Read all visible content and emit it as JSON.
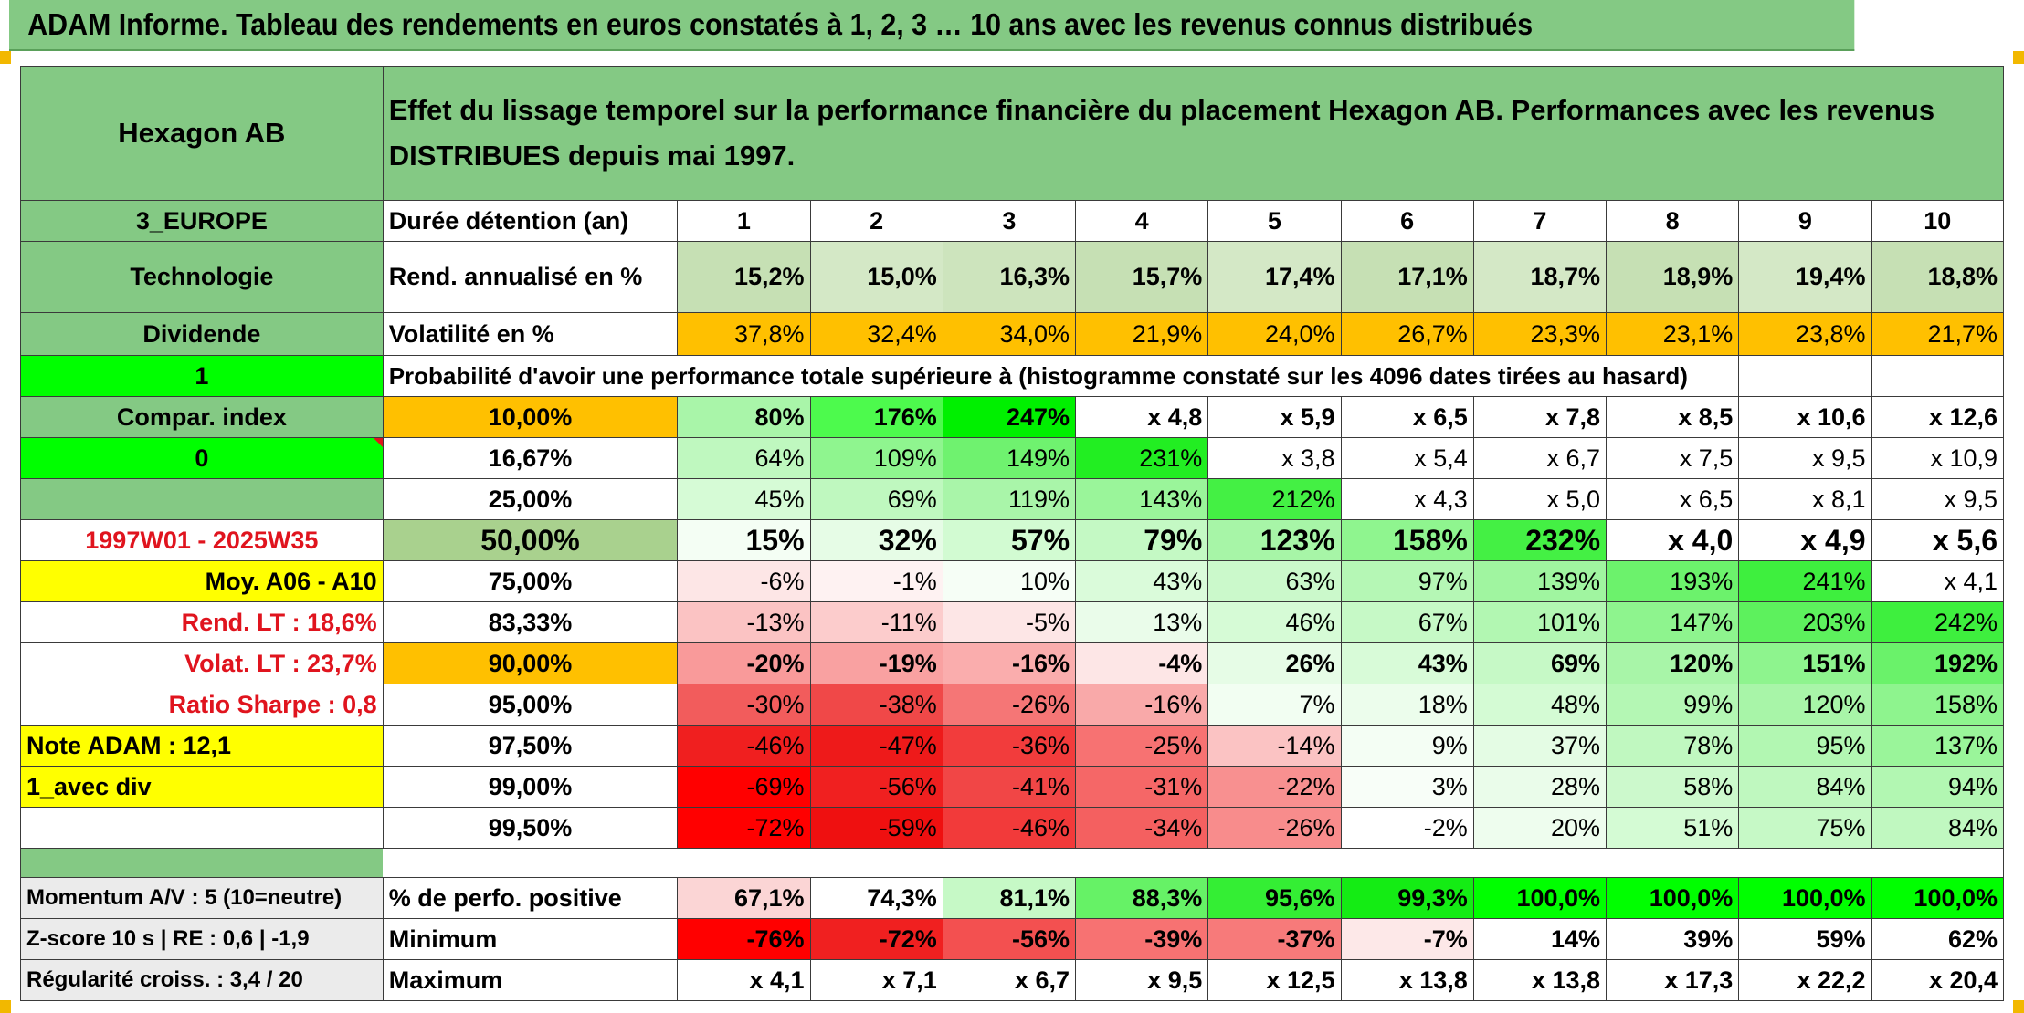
{
  "title": "ADAM Informe. Tableau des rendements en euros constatés à 1, 2, 3 … 10 ans avec les revenus connus distribués",
  "fund": "Hexagon AB",
  "description": "Effet du lissage temporel sur la performance financière du placement Hexagon AB. Performances avec les revenus DISTRIBUES depuis mai 1997.",
  "left_labels": {
    "region": "3_EUROPE",
    "sector": "Technologie",
    "dividend": "Dividende",
    "flag_one": "1",
    "compar_index": "Compar. index",
    "flag_zero": "0",
    "period": "1997W01 - 2025W35",
    "average": "Moy. A06 - A10",
    "rend_lt": "Rend. LT :   18,6%",
    "volat_lt": "Volat. LT :   23,7%",
    "sharpe": "Ratio Sharpe :    0,8",
    "note": "Note ADAM : 12,1",
    "mode": "1_avec div",
    "momentum": "Momentum A/V : 5 (10=neutre)",
    "zscore": "Z-score 10 s | RE : 0,6 | -1,9",
    "regularite": "Régularité croiss. : 3,4 / 20"
  },
  "years_label": "Durée détention (an)",
  "years": [
    "1",
    "2",
    "3",
    "4",
    "5",
    "6",
    "7",
    "8",
    "9",
    "10"
  ],
  "rend_label": "Rend. annualisé en %",
  "rend": [
    "15,2%",
    "15,0%",
    "16,3%",
    "15,7%",
    "17,4%",
    "17,1%",
    "18,7%",
    "18,9%",
    "19,4%",
    "18,8%"
  ],
  "vol_label": "Volatilité en %",
  "vol": [
    "37,8%",
    "32,4%",
    "34,0%",
    "21,9%",
    "24,0%",
    "26,7%",
    "23,3%",
    "23,1%",
    "23,8%",
    "21,7%"
  ],
  "prob_label": "Probabilité d'avoir une performance totale supérieure à (histogramme constaté sur les 4096 dates tirées au hasard)",
  "quantiles": [
    {
      "p": "10,00%",
      "v": [
        "80%",
        "176%",
        "247%",
        "x 4,8",
        "x 5,9",
        "x 6,5",
        "x 7,8",
        "x 8,5",
        "x 10,6",
        "x 12,6"
      ]
    },
    {
      "p": "16,67%",
      "v": [
        "64%",
        "109%",
        "149%",
        "231%",
        "x 3,8",
        "x 5,4",
        "x 6,7",
        "x 7,5",
        "x 9,5",
        "x 10,9"
      ]
    },
    {
      "p": "25,00%",
      "v": [
        "45%",
        "69%",
        "119%",
        "143%",
        "212%",
        "x 4,3",
        "x 5,0",
        "x 6,5",
        "x 8,1",
        "x 9,5"
      ]
    },
    {
      "p": "50,00%",
      "v": [
        "15%",
        "32%",
        "57%",
        "79%",
        "123%",
        "158%",
        "232%",
        "x 4,0",
        "x 4,9",
        "x 5,6"
      ]
    },
    {
      "p": "75,00%",
      "v": [
        "-6%",
        "-1%",
        "10%",
        "43%",
        "63%",
        "97%",
        "139%",
        "193%",
        "241%",
        "x 4,1"
      ]
    },
    {
      "p": "83,33%",
      "v": [
        "-13%",
        "-11%",
        "-5%",
        "13%",
        "46%",
        "67%",
        "101%",
        "147%",
        "203%",
        "242%"
      ]
    },
    {
      "p": "90,00%",
      "v": [
        "-20%",
        "-19%",
        "-16%",
        "-4%",
        "26%",
        "43%",
        "69%",
        "120%",
        "151%",
        "192%"
      ]
    },
    {
      "p": "95,00%",
      "v": [
        "-30%",
        "-38%",
        "-26%",
        "-16%",
        "7%",
        "18%",
        "48%",
        "99%",
        "120%",
        "158%"
      ]
    },
    {
      "p": "97,50%",
      "v": [
        "-46%",
        "-47%",
        "-36%",
        "-25%",
        "-14%",
        "9%",
        "37%",
        "78%",
        "95%",
        "137%"
      ]
    },
    {
      "p": "99,00%",
      "v": [
        "-69%",
        "-56%",
        "-41%",
        "-31%",
        "-22%",
        "3%",
        "28%",
        "58%",
        "84%",
        "94%"
      ]
    },
    {
      "p": "99,50%",
      "v": [
        "-72%",
        "-59%",
        "-46%",
        "-34%",
        "-26%",
        "-2%",
        "20%",
        "51%",
        "75%",
        "84%"
      ]
    }
  ],
  "positive_label": "% de perfo. positive",
  "positive": [
    "67,1%",
    "74,3%",
    "81,1%",
    "88,3%",
    "95,6%",
    "99,3%",
    "100,0%",
    "100,0%",
    "100,0%",
    "100,0%"
  ],
  "min_label": "Minimum",
  "minimum": [
    "-76%",
    "-72%",
    "-56%",
    "-39%",
    "-37%",
    "-7%",
    "14%",
    "39%",
    "59%",
    "62%"
  ],
  "max_label": "Maximum",
  "maximum": [
    "x 4,1",
    "x 7,1",
    "x 6,7",
    "x 9,5",
    "x 12,5",
    "x 13,8",
    "x 13,8",
    "x 17,3",
    "x 22,2",
    "x 20,4"
  ],
  "colors": {
    "header_green": "#84c984",
    "bright_green": "#00ff00",
    "yellow": "#ffff00",
    "orange": "#ffc000",
    "red": "#ff0000"
  },
  "cell_colors": {
    "rend": [
      "#c6e0b4",
      "#d4e8c6",
      "#cde4bd",
      "#c6e0b4",
      "#d4e8c6",
      "#c6e0b4",
      "#d4e8c6",
      "#c6e0b4",
      "#d4e8c6",
      "#c6e0b4"
    ],
    "vol": [
      "#ffc000",
      "#ffc000",
      "#ffc000",
      "#ffc000",
      "#ffc000",
      "#ffc000",
      "#ffc000",
      "#ffc000",
      "#ffc000",
      "#ffc000"
    ],
    "quantiles": [
      [
        "#a9f5a9",
        "#4dfa4d",
        "#00f000",
        "#ffffff",
        "#ffffff",
        "#ffffff",
        "#ffffff",
        "#ffffff",
        "#ffffff",
        "#ffffff"
      ],
      [
        "#bff8bf",
        "#8ff58f",
        "#6ff26f",
        "#22ee22",
        "#ffffff",
        "#ffffff",
        "#ffffff",
        "#ffffff",
        "#ffffff",
        "#ffffff"
      ],
      [
        "#d6fbd6",
        "#bff8bf",
        "#a9f5a9",
        "#9af59a",
        "#44f044",
        "#ffffff",
        "#ffffff",
        "#ffffff",
        "#ffffff",
        "#ffffff"
      ],
      [
        "#f4fef4",
        "#e6fce6",
        "#d2fbd2",
        "#c4f9c4",
        "#a7f5a7",
        "#8ff58f",
        "#44f044",
        "#ffffff",
        "#ffffff",
        "#ffffff"
      ],
      [
        "#fde6e6",
        "#fef2f2",
        "#f6fef6",
        "#dafbda",
        "#cbf9cb",
        "#b5f7b5",
        "#a0f5a0",
        "#6cf26c",
        "#3eef3e",
        "#ffffff"
      ],
      [
        "#fbc3c3",
        "#fccccc",
        "#fde6e6",
        "#eafcea",
        "#d6fbd6",
        "#c6f9c6",
        "#b2f7b2",
        "#8ef48e",
        "#5df15d",
        "#3eef3e"
      ],
      [
        "#f99a9a",
        "#f9a1a1",
        "#faadad",
        "#fde6e6",
        "#e6fce6",
        "#d8fbd8",
        "#c6f9c6",
        "#a8f5a8",
        "#8ef48e",
        "#6af26a"
      ],
      [
        "#f25c5c",
        "#f04848",
        "#f57676",
        "#f9a9a9",
        "#f2fef2",
        "#ecfdec",
        "#d4fbd4",
        "#b4f7b4",
        "#a8f5a8",
        "#8ef48e"
      ],
      [
        "#f01f1f",
        "#ee1a1a",
        "#f23c3c",
        "#f77272",
        "#fbc3c3",
        "#f4fef4",
        "#e4fce4",
        "#c0f8c0",
        "#b2f7b2",
        "#9af59a"
      ],
      [
        "#ff0000",
        "#f02020",
        "#f14646",
        "#f56767",
        "#f89090",
        "#f8fef8",
        "#eafcea",
        "#ccf9cc",
        "#bff8bf",
        "#b2f7b2"
      ],
      [
        "#ff0000",
        "#ef1010",
        "#f23a3a",
        "#f46060",
        "#f88c8c",
        "#ffffff",
        "#eefdee",
        "#d4fbd4",
        "#c6f9c6",
        "#c0f8c0"
      ]
    ],
    "positive": [
      "#fbd5d5",
      "#ffffff",
      "#c6f9c6",
      "#66f266",
      "#34ee34",
      "#14ec14",
      "#00ff00",
      "#00ff00",
      "#00ff00",
      "#00ff00"
    ],
    "minimum": [
      "#ff0000",
      "#f02020",
      "#f35050",
      "#f77272",
      "#f77a7a",
      "#fde8e8",
      "#ffffff",
      "#ffffff",
      "#ffffff",
      "#ffffff"
    ],
    "maximum": [
      "#ffffff",
      "#ffffff",
      "#ffffff",
      "#ffffff",
      "#ffffff",
      "#ffffff",
      "#ffffff",
      "#ffffff",
      "#ffffff",
      "#ffffff"
    ]
  }
}
